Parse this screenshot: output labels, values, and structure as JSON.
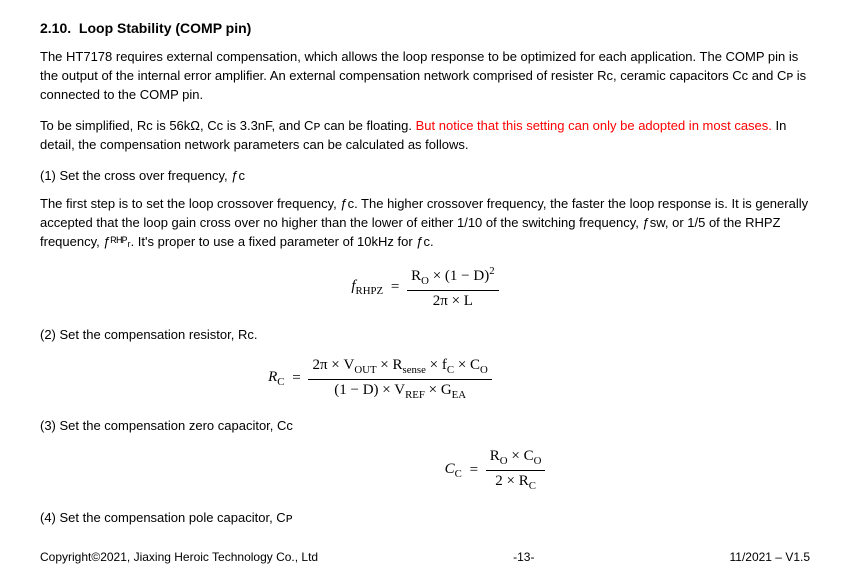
{
  "section": {
    "number": "2.10.",
    "title": "Loop Stability (COMP pin)"
  },
  "para1": "The HT7178 requires external compensation, which allows the loop response to be optimized for each application. The COMP pin is the output of the internal error amplifier. An external compensation network comprised of resister Rᴄ, ceramic capacitors Cᴄ and Cᴘ is connected to the COMP pin.",
  "para2a": "To be simplified, Rᴄ is 56kΩ, Cᴄ is 3.3nF, and Cᴘ can be floating. ",
  "para2red": "But notice that this setting can only be adopted in most cases.",
  "para2b": " In detail, the compensation network parameters can be calculated as follows.",
  "step1_label": "(1)  Set the cross over frequency, ƒc",
  "step1_body": "The first step is to set the loop crossover frequency, ƒc. The higher crossover frequency, the faster the loop response is. It is generally accepted that the loop gain cross over no higher than the lower of either 1/10 of the switching frequency, ƒsw, or 1/5 of the RHPZ frequency, ƒᴿᴴᴾᵣ. It's proper to use a fixed parameter of 10kHz for ƒc.",
  "formula1": {
    "lhs_base": "f",
    "lhs_sub": "RHPZ",
    "num": "R<sub class=\"subtxt\">O</sub> × (1 − D)<sup>2</sup>",
    "den": "2π × L"
  },
  "step2_label": "(2)  Set the compensation resistor, Rᴄ.",
  "formula2": {
    "lhs_base": "R",
    "lhs_sub": "C",
    "num": "2π × V<sub class=\"subtxt\">OUT</sub> × R<sub class=\"subtxt\">sense</sub> × f<sub class=\"subtxt\">C</sub> × C<sub class=\"subtxt\">O</sub>",
    "den": "(1 − D) × V<sub class=\"subtxt\">REF</sub> × G<sub class=\"subtxt\">EA</sub>"
  },
  "step3_label": "(3)  Set the compensation zero capacitor, Cᴄ",
  "formula3": {
    "lhs_base": "C",
    "lhs_sub": "C",
    "num": "R<sub class=\"subtxt\">O</sub> × C<sub class=\"subtxt\">O</sub>",
    "den": "2 × R<sub class=\"subtxt\">C</sub>"
  },
  "step4_label": "(4)  Set the compensation pole capacitor, Cᴘ",
  "footer": {
    "left": "Copyright©2021, Jiaxing Heroic Technology Co., Ltd",
    "mid": "-13-",
    "right": "11/2021 – V1.5"
  }
}
